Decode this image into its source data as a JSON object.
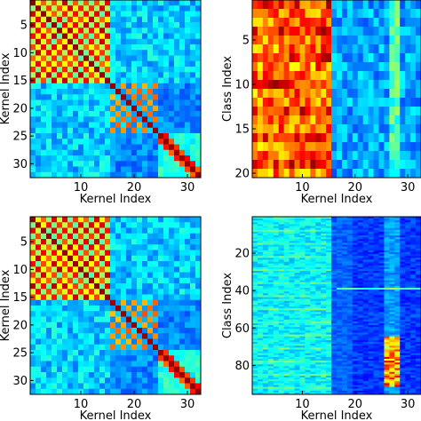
{
  "chart_data": [
    {
      "type": "heatmap",
      "panel": "top-left",
      "xlabel": "Kernel Index",
      "ylabel": "Kernel Index",
      "rows": 32,
      "cols": 32,
      "xticks": [
        10,
        20,
        30
      ],
      "yticks": [
        5,
        10,
        15,
        20,
        25,
        30
      ],
      "colormap": "jet",
      "structure": "kernel-by-kernel similarity; strong checkerboard block for kernels 1-15, smaller checkerboard block for 16-24, diagonal blocks near 25-32"
    },
    {
      "type": "heatmap",
      "panel": "top-right",
      "xlabel": "Kernel Index",
      "ylabel": "Class Index",
      "rows": 20,
      "cols": 32,
      "xticks": [
        10,
        20,
        30
      ],
      "yticks": [
        5,
        10,
        15,
        20
      ],
      "colormap": "jet",
      "structure": "class-by-kernel weights; high values for kernels 1-15, low values for kernels 16-32"
    },
    {
      "type": "heatmap",
      "panel": "bottom-left",
      "xlabel": "Kernel Index",
      "ylabel": "Kernel Index",
      "rows": 32,
      "cols": 32,
      "xticks": [
        10,
        20,
        30
      ],
      "yticks": [
        5,
        10,
        15,
        20,
        25,
        30
      ],
      "colormap": "jet",
      "structure": "kernel-by-kernel similarity; checkerboard block for kernels 1-15, smaller block for 16-24, diagonal blocks near 25-32"
    },
    {
      "type": "heatmap",
      "panel": "bottom-right",
      "xlabel": "Kernel Index",
      "ylabel": "Class Index",
      "rows": 95,
      "cols": 32,
      "xticks": [
        10,
        20,
        30
      ],
      "yticks": [
        20,
        40,
        60,
        80
      ],
      "colormap": "jet",
      "structure": "class-by-kernel weights; mostly low values, moderate cyan for kernels 1-15, hotspot near kernels 26-27 for classes 65-90"
    }
  ]
}
